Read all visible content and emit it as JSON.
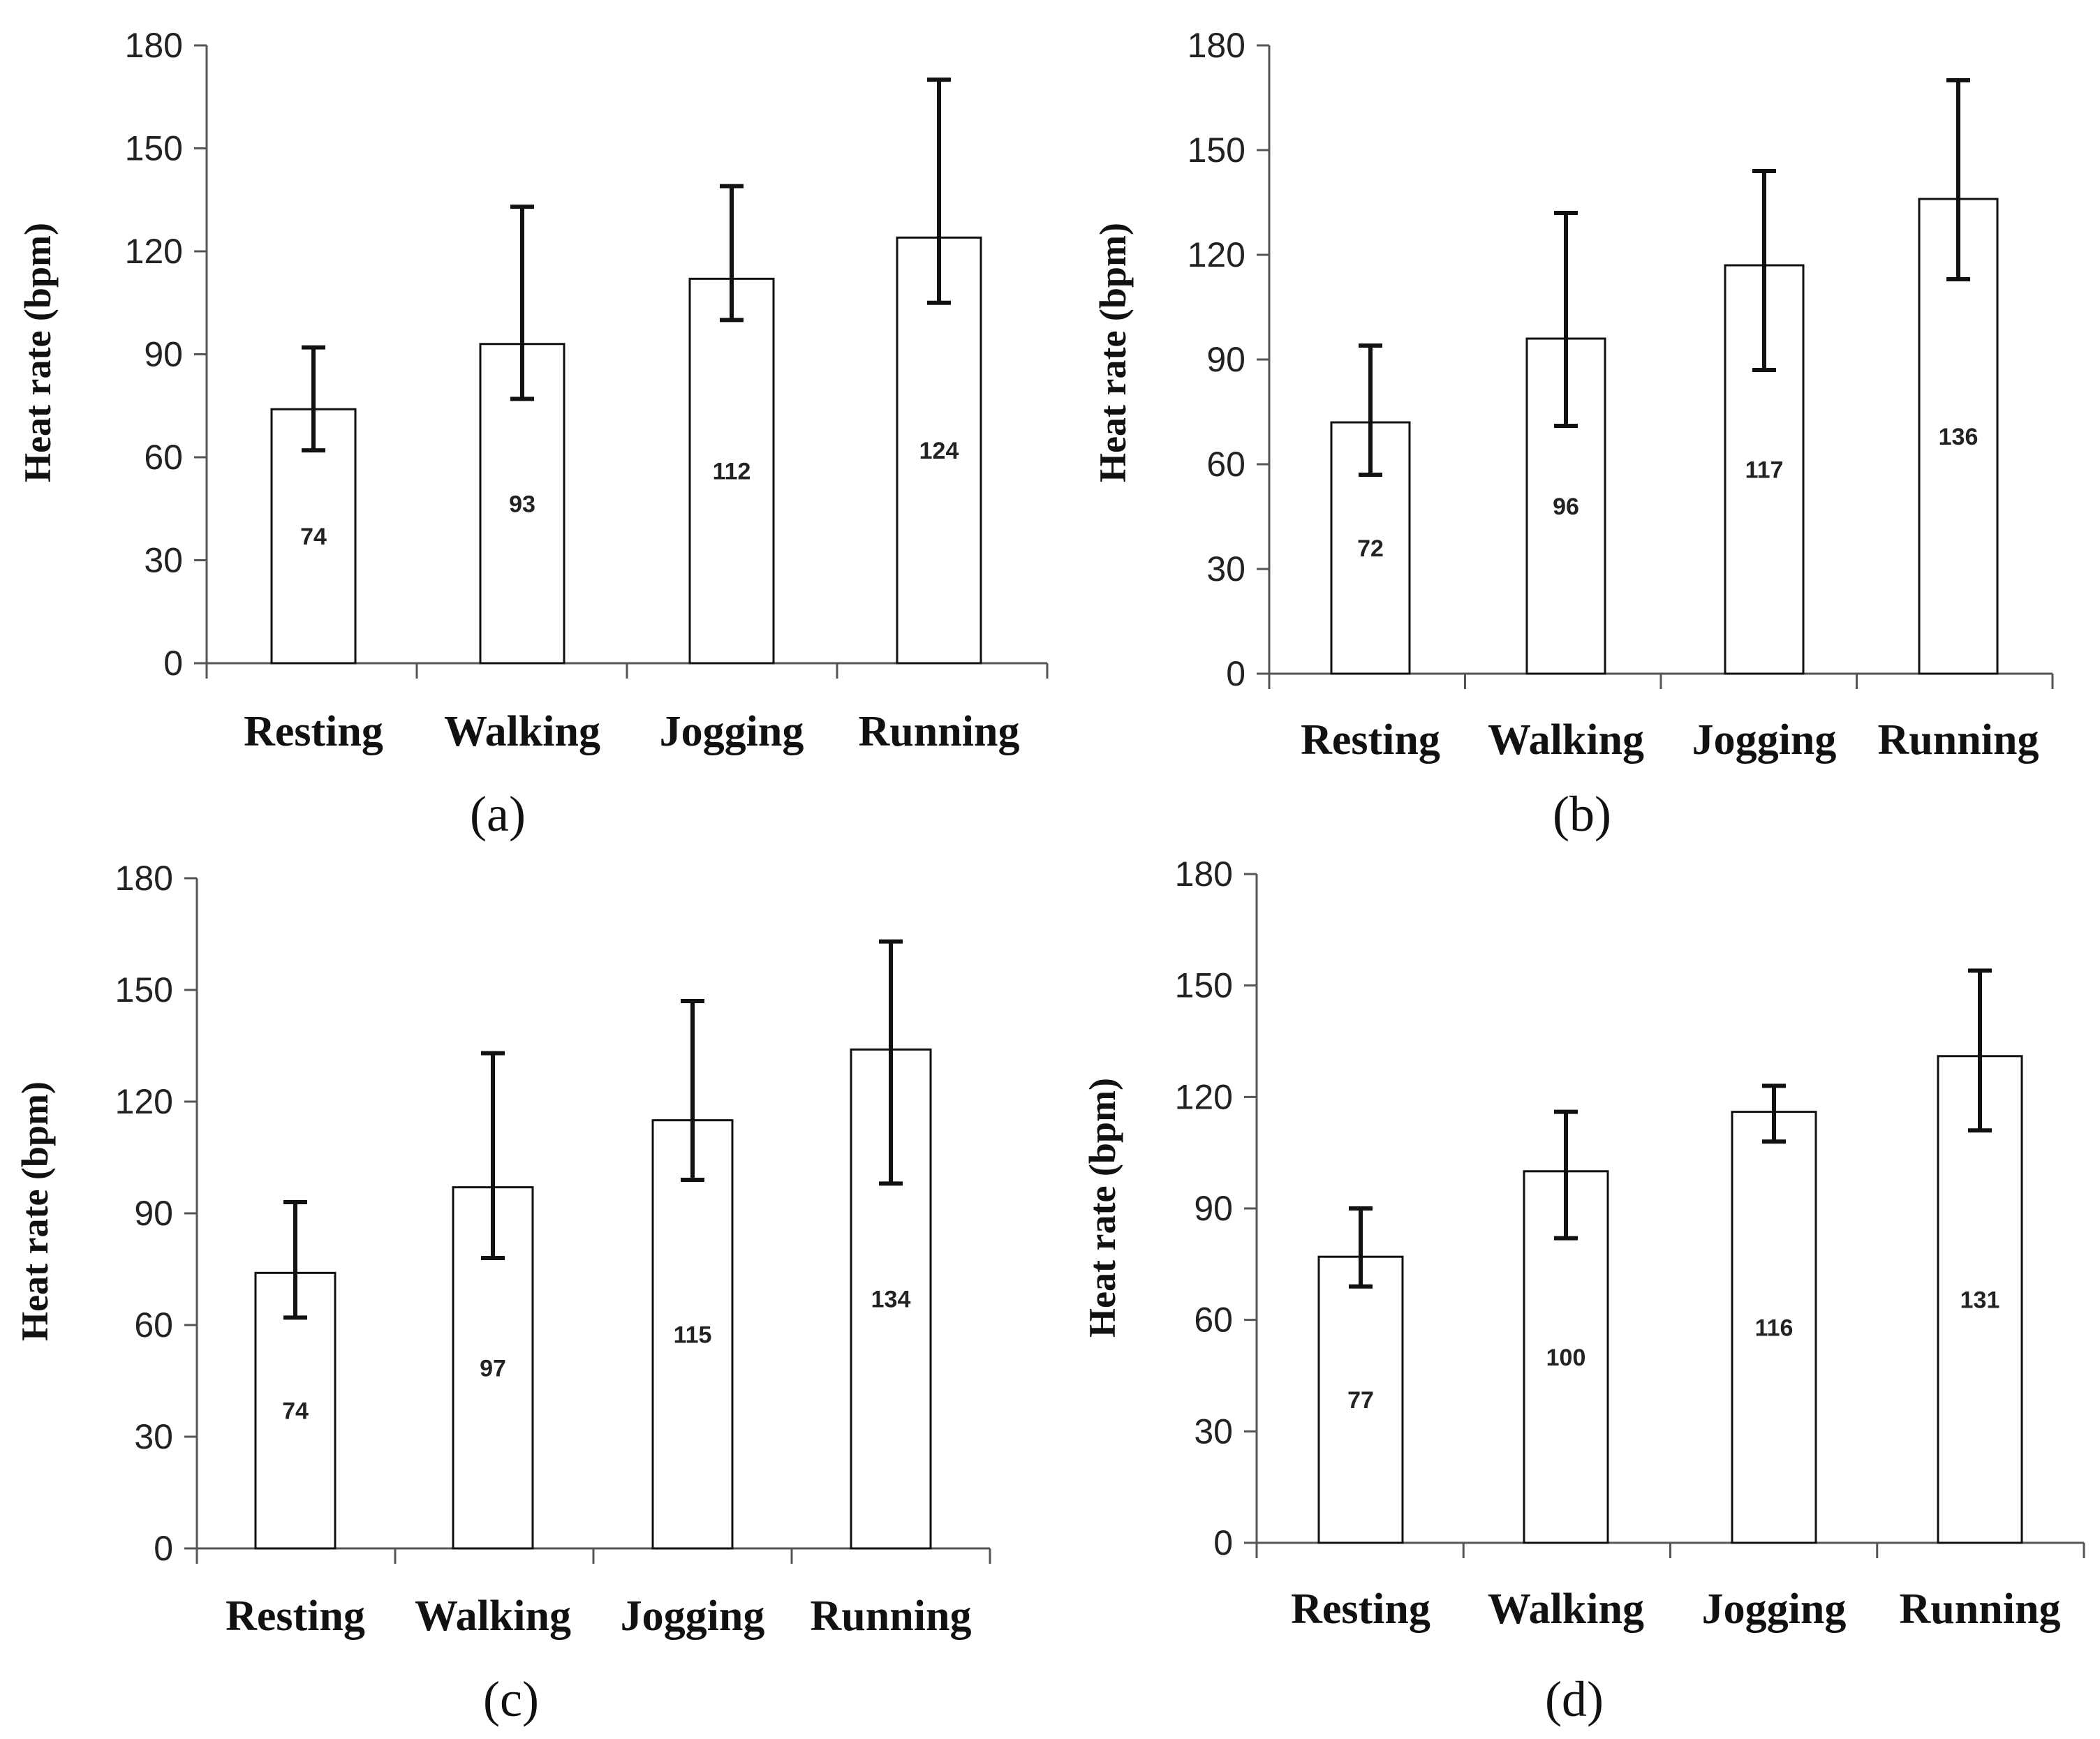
{
  "figure_title": "",
  "chart_data": [
    {
      "panel": "a",
      "type": "bar",
      "categories": [
        "Resting",
        "Walking",
        "Jogging",
        "Running"
      ],
      "values": [
        74,
        93,
        112,
        124
      ],
      "value_labels": [
        "74",
        "93",
        "112",
        "124"
      ],
      "error_low": [
        62,
        77,
        100,
        105
      ],
      "error_high": [
        92,
        133,
        139,
        170
      ],
      "ylabel": "Heat rate (bpm)",
      "xlabel": "",
      "ylim": [
        0,
        180
      ],
      "yticks": [
        "0",
        "30",
        "60",
        "90",
        "120",
        "150",
        "180"
      ],
      "caption": "(a)"
    },
    {
      "panel": "b",
      "type": "bar",
      "categories": [
        "Resting",
        "Walking",
        "Jogging",
        "Running"
      ],
      "values": [
        72,
        96,
        117,
        136
      ],
      "value_labels": [
        "72",
        "96",
        "117",
        "136"
      ],
      "error_low": [
        57,
        71,
        87,
        113
      ],
      "error_high": [
        94,
        132,
        144,
        170
      ],
      "ylabel": "Heat rate (bpm)",
      "xlabel": "",
      "ylim": [
        0,
        180
      ],
      "yticks": [
        "0",
        "30",
        "60",
        "90",
        "120",
        "150",
        "180"
      ],
      "caption": "(b)"
    },
    {
      "panel": "c",
      "type": "bar",
      "categories": [
        "Resting",
        "Walking",
        "Jogging",
        "Running"
      ],
      "values": [
        74,
        97,
        115,
        134
      ],
      "value_labels": [
        "74",
        "97",
        "115",
        "134"
      ],
      "error_low": [
        62,
        78,
        99,
        98
      ],
      "error_high": [
        93,
        133,
        147,
        163
      ],
      "ylabel": "Heat rate (bpm)",
      "xlabel": "",
      "ylim": [
        0,
        180
      ],
      "yticks": [
        "0",
        "30",
        "60",
        "90",
        "120",
        "150",
        "180"
      ],
      "caption": "(c)"
    },
    {
      "panel": "d",
      "type": "bar",
      "categories": [
        "Resting",
        "Walking",
        "Jogging",
        "Running"
      ],
      "values": [
        77,
        100,
        116,
        131
      ],
      "value_labels": [
        "77",
        "100",
        "116",
        "131"
      ],
      "error_low": [
        69,
        82,
        108,
        111
      ],
      "error_high": [
        90,
        116,
        123,
        154
      ],
      "ylabel": "Heat rate (bpm)",
      "xlabel": "",
      "ylim": [
        0,
        180
      ],
      "yticks": [
        "0",
        "30",
        "60",
        "90",
        "120",
        "150",
        "180"
      ],
      "caption": "(d)"
    }
  ]
}
